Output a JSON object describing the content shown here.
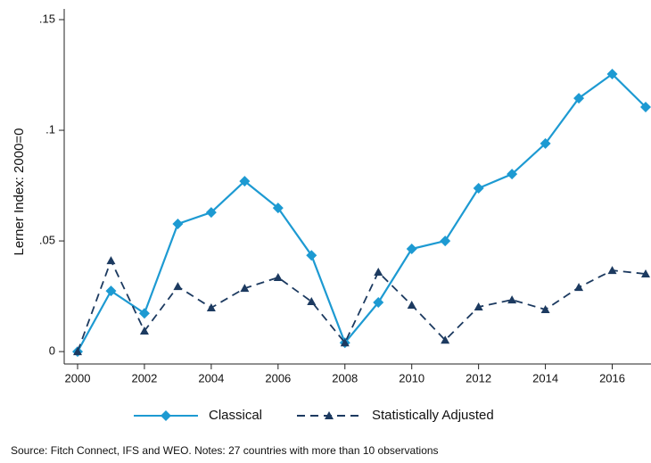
{
  "chart_data": {
    "type": "line",
    "ylabel": "Lerner Index: 2000=0",
    "x": [
      2000,
      2001,
      2002,
      2003,
      2004,
      2005,
      2006,
      2007,
      2008,
      2009,
      2010,
      2011,
      2012,
      2013,
      2014,
      2015,
      2016,
      2017
    ],
    "series": [
      {
        "name": "Classical",
        "color": "#1d9ad2",
        "dash": false,
        "marker": "diamond",
        "values": [
          0,
          0.0274,
          0.0173,
          0.0577,
          0.0629,
          0.077,
          0.0649,
          0.0435,
          0.004,
          0.0222,
          0.0464,
          0.05,
          0.0738,
          0.0802,
          0.094,
          0.1145,
          0.1254,
          0.1105
        ]
      },
      {
        "name": "Statistically Adjusted",
        "color": "#1c3a60",
        "dash": true,
        "marker": "triangle",
        "values": [
          0,
          0.0411,
          0.0093,
          0.0294,
          0.0198,
          0.0286,
          0.0335,
          0.0226,
          0.004,
          0.0359,
          0.021,
          0.0052,
          0.0202,
          0.0234,
          0.019,
          0.029,
          0.0367,
          0.0351
        ]
      }
    ],
    "xlim": [
      2000,
      2017
    ],
    "xticks": [
      2000,
      2002,
      2004,
      2006,
      2008,
      2010,
      2012,
      2014,
      2016
    ],
    "ylim": [
      -0.006,
      0.155
    ],
    "yticks": [
      0,
      {
        "value": 0.05,
        "label": ".05"
      },
      {
        "value": 0.1,
        "label": ".1"
      },
      {
        "value": 0.15,
        "label": ".15"
      }
    ],
    "note": "Source: Fitch Connect, IFS and WEO. Notes: 27  countries with more than 10 observations"
  }
}
